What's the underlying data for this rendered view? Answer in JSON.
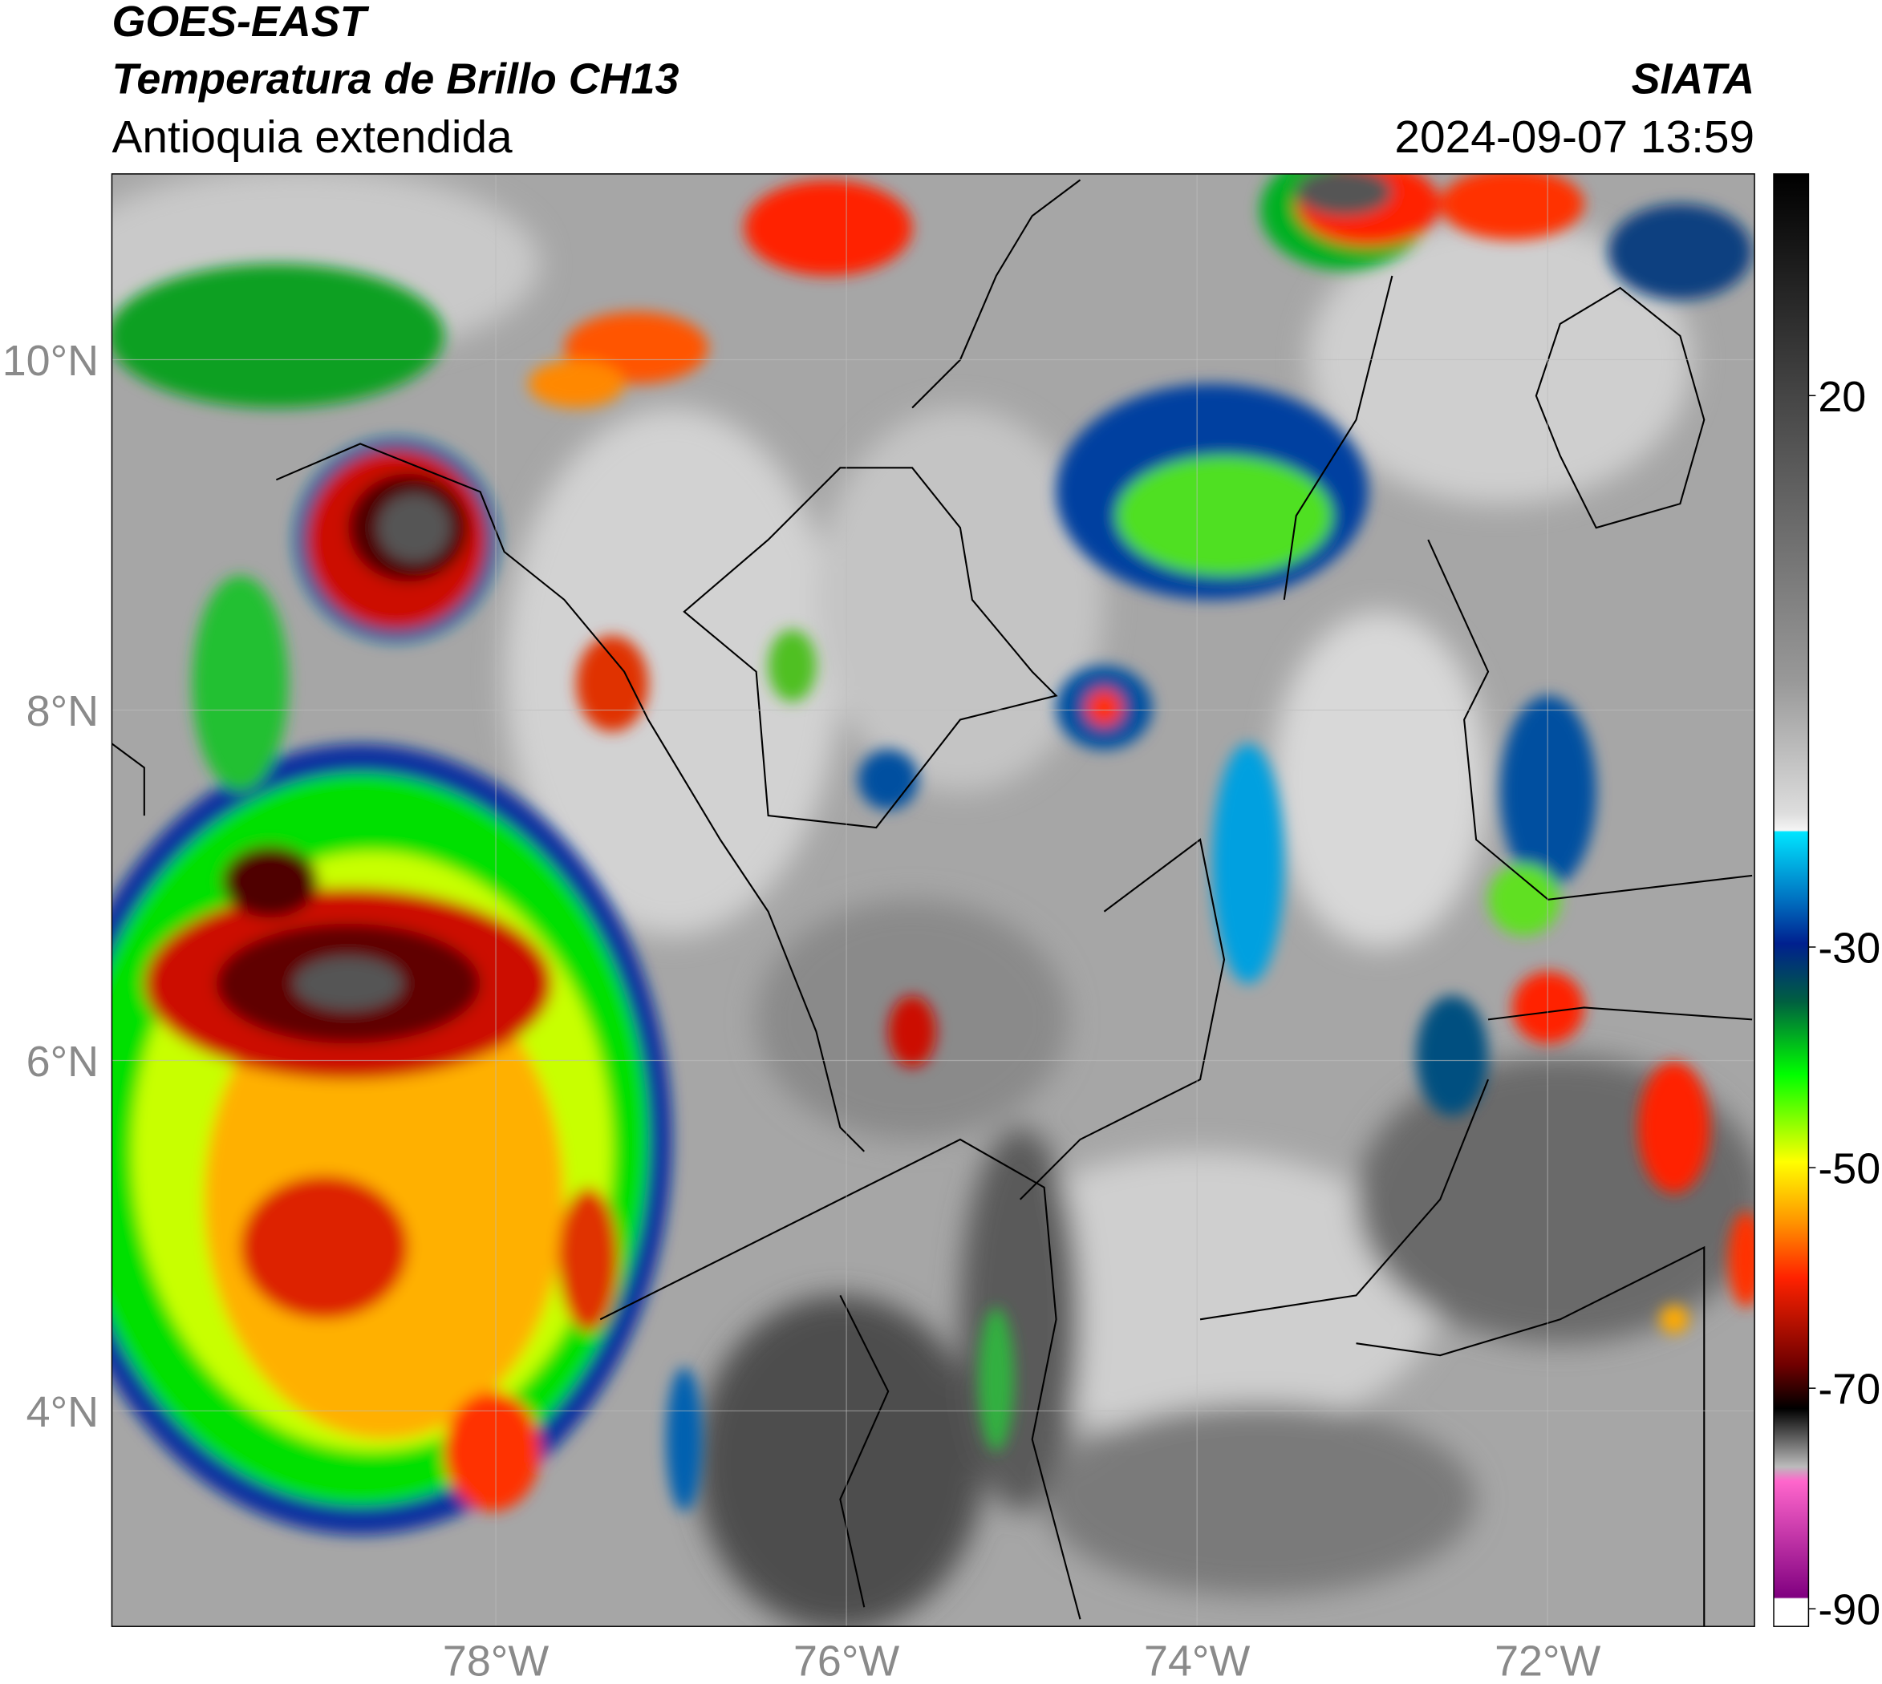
{
  "header": {
    "title": "GOES-EAST",
    "subtitle": "Temperatura de Brillo CH13",
    "region": "Antioquia extendida",
    "source": "SIATA",
    "datetime": "2024-09-07 13:59"
  },
  "map": {
    "lon_range": [
      -80.19,
      -70.82
    ],
    "lat_range": [
      2.77,
      11.06
    ],
    "lat_ticks": [
      {
        "value": 4,
        "label": "4°N"
      },
      {
        "value": 6,
        "label": "6°N"
      },
      {
        "value": 8,
        "label": "8°N"
      },
      {
        "value": 10,
        "label": "10°N"
      }
    ],
    "lon_ticks": [
      {
        "value": -78,
        "label": "78°W"
      },
      {
        "value": -76,
        "label": "76°W"
      },
      {
        "value": -74,
        "label": "74°W"
      },
      {
        "value": -72,
        "label": "72°W"
      }
    ],
    "grid": true
  },
  "colorbar": {
    "range": [
      -91.6,
      40.1
    ],
    "ticks": [
      20,
      -30,
      -50,
      -70,
      -90
    ]
  }
}
